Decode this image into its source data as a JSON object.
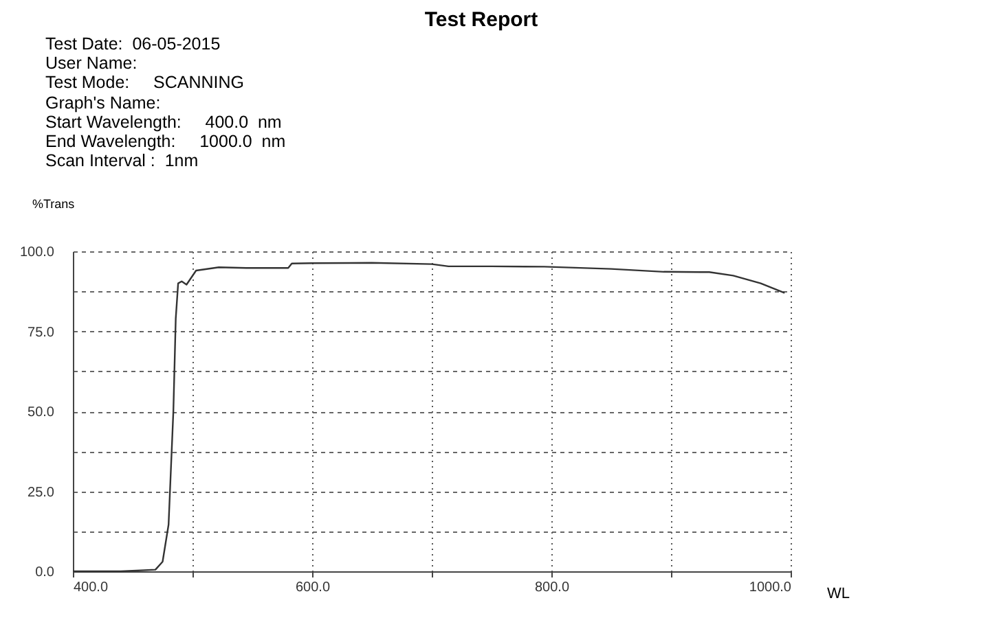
{
  "chart_data": {
    "type": "line",
    "title": "Test Report",
    "annotations": [
      "Test Date:  06-05-2015",
      "User Name:",
      "Test Mode:     SCANNING",
      "Graph's Name:",
      "Start Wavelength:     400.0  nm",
      "End Wavelength:     1000.0  nm",
      "Scan Interval :  1nm"
    ],
    "xlabel": "WL",
    "ylabel": "%Trans",
    "xlim": [
      400,
      1000
    ],
    "xticks": [
      {
        "value": 400,
        "label": "400.0"
      },
      {
        "value": 500,
        "label": null
      },
      {
        "value": 600,
        "label": "600.0"
      },
      {
        "value": 700,
        "label": null
      },
      {
        "value": 800,
        "label": "800.0"
      },
      {
        "value": 900,
        "label": null
      },
      {
        "value": 1000,
        "label": "1000.0"
      }
    ],
    "ylim": [
      0,
      100
    ],
    "yticks": [
      {
        "value": 0,
        "label": "0.0"
      },
      {
        "value": 12.5,
        "label": null
      },
      {
        "value": 25,
        "label": "25.0"
      },
      {
        "value": 37.5,
        "label": null
      },
      {
        "value": 50,
        "label": "50.0"
      },
      {
        "value": 62.5,
        "label": null
      },
      {
        "value": 75,
        "label": "75.0"
      },
      {
        "value": 87.5,
        "label": null
      },
      {
        "value": 100,
        "label": "100.0"
      }
    ],
    "grid": true,
    "marker": "none",
    "line_style": "solid",
    "series": [
      {
        "color": "#333333",
        "x": [
          400,
          440,
          469,
          475,
          480,
          484,
          486,
          488,
          491,
          495,
          503,
          522,
          545,
          580,
          583,
          600,
          650,
          700,
          714,
          750,
          794,
          850,
          894,
          932,
          952,
          975,
          995
        ],
        "values": [
          0,
          0,
          0.5,
          3,
          14.6,
          50,
          79,
          90,
          90.6,
          89.6,
          94,
          95,
          94.8,
          94.8,
          96.2,
          96.3,
          96.4,
          96,
          95.3,
          95.3,
          95.2,
          94.5,
          93.6,
          93.5,
          92.4,
          90,
          87
        ]
      }
    ]
  }
}
